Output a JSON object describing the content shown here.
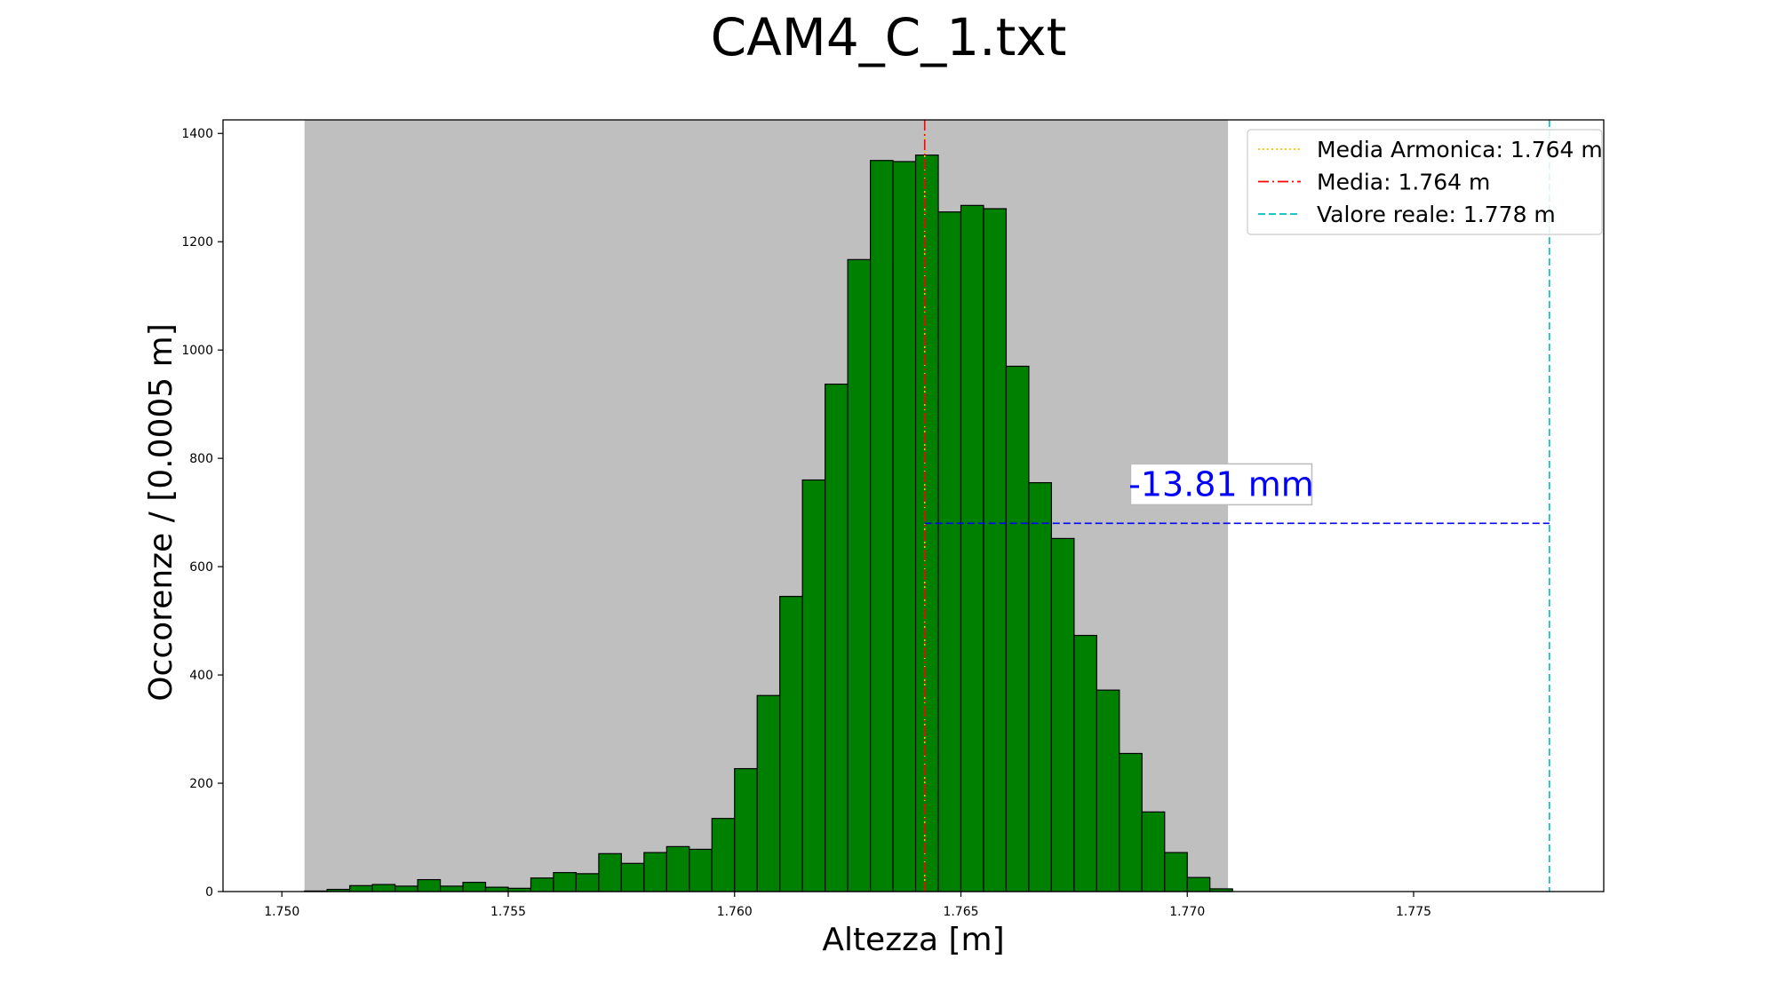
{
  "chart_data": {
    "type": "bar",
    "title": "CAM4_C_1.txt",
    "xlabel": "Altezza [m]",
    "ylabel": "Occorenze / [0.0005 m]",
    "xlim": [
      1.7487,
      1.7792
    ],
    "ylim": [
      0,
      1425
    ],
    "grid": false,
    "bar_color": "#008000",
    "bar_edge_color": "#000000",
    "shaded_region": {
      "x0": 1.7505,
      "x1": 1.7709,
      "color": "#bfbfbf"
    },
    "x_ticks": [
      {
        "value": 1.75,
        "label": "1.750"
      },
      {
        "value": 1.755,
        "label": "1.755"
      },
      {
        "value": 1.76,
        "label": "1.760"
      },
      {
        "value": 1.765,
        "label": "1.765"
      },
      {
        "value": 1.77,
        "label": "1.770"
      },
      {
        "value": 1.775,
        "label": "1.775"
      }
    ],
    "y_ticks": [
      {
        "value": 0,
        "label": "0"
      },
      {
        "value": 200,
        "label": "200"
      },
      {
        "value": 400,
        "label": "400"
      },
      {
        "value": 600,
        "label": "600"
      },
      {
        "value": 800,
        "label": "800"
      },
      {
        "value": 1000,
        "label": "1000"
      },
      {
        "value": 1200,
        "label": "1200"
      },
      {
        "value": 1400,
        "label": "1400"
      }
    ],
    "bins": {
      "start": 1.7505,
      "width": 0.0005,
      "counts": [
        1,
        4,
        11,
        13,
        10,
        22,
        10,
        17,
        8,
        6,
        25,
        35,
        33,
        70,
        52,
        72,
        83,
        78,
        135,
        227,
        362,
        545,
        760,
        937,
        1167,
        1350,
        1348,
        1360,
        1255,
        1267,
        1261,
        970,
        755,
        652,
        473,
        372,
        255,
        147,
        72,
        26,
        5
      ]
    },
    "vlines": [
      {
        "name": "Media Armonica",
        "x": 1.7642,
        "color": "#ffc000",
        "dash": "2,3"
      },
      {
        "name": "Media",
        "x": 1.7642,
        "color": "#ff0000",
        "dash": "12,4,2,4"
      },
      {
        "name": "Valore reale",
        "x": 1.778,
        "color": "#00bfbf",
        "dash": "8,4"
      }
    ],
    "hline": {
      "y": 680,
      "x0": 1.7642,
      "x1": 1.778,
      "color": "#0000ff",
      "dash": "8,4"
    },
    "annotation": {
      "text": "-13.81 mm",
      "color": "#0000ff",
      "x": 1.77075,
      "y": 752
    },
    "legend": {
      "position": "top-right",
      "entries": [
        {
          "label": "Media Armonica: 1.764 m",
          "color": "#ffc000",
          "dash": "2,3"
        },
        {
          "label": "Media: 1.764 m",
          "color": "#ff0000",
          "dash": "12,4,2,4"
        },
        {
          "label": "Valore reale: 1.778 m",
          "color": "#00bfbf",
          "dash": "8,4"
        }
      ]
    }
  }
}
